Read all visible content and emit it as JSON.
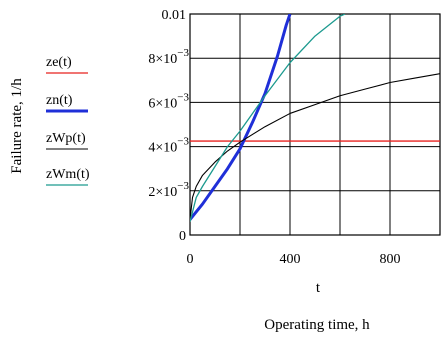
{
  "chart_data": {
    "type": "line",
    "ylabel": "Failure rate, 1/h",
    "xlabel": "t",
    "caption": "Operating time, h",
    "xlim": [
      0,
      1000
    ],
    "ylim": [
      0,
      0.01
    ],
    "x_ticks": [
      {
        "value": 0,
        "label": "0"
      },
      {
        "value": 400,
        "label": "400"
      },
      {
        "value": 800,
        "label": "800"
      }
    ],
    "y_ticks": [
      {
        "value": 0,
        "base": "0",
        "exp": ""
      },
      {
        "value": 0.002,
        "base": "2×10",
        "exp": "−3"
      },
      {
        "value": 0.004,
        "base": "4×10",
        "exp": "−3"
      },
      {
        "value": 0.006,
        "base": "6×10",
        "exp": "−3"
      },
      {
        "value": 0.008,
        "base": "8×10",
        "exp": "−3"
      },
      {
        "value": 0.01,
        "base": "0.01",
        "exp": ""
      }
    ],
    "grid": true,
    "legend_position": "left",
    "series": [
      {
        "name": "ze(t)",
        "color": "#e8201f",
        "width": 1.3,
        "points": [
          [
            0,
            0.00425
          ],
          [
            1000,
            0.00425
          ]
        ]
      },
      {
        "name": "zn(t)",
        "color": "#1f2fd8",
        "width": 3,
        "points": [
          [
            0,
            0.0007
          ],
          [
            50,
            0.0014
          ],
          [
            100,
            0.0022
          ],
          [
            150,
            0.003
          ],
          [
            200,
            0.0039
          ],
          [
            250,
            0.0051
          ],
          [
            300,
            0.0064
          ],
          [
            350,
            0.0081
          ],
          [
            385,
            0.0095
          ],
          [
            400,
            0.01
          ]
        ]
      },
      {
        "name": "zWp(t)",
        "color": "#000000",
        "width": 1.1,
        "points": [
          [
            0,
            0.0007
          ],
          [
            10,
            0.0017
          ],
          [
            25,
            0.0022
          ],
          [
            50,
            0.0027
          ],
          [
            100,
            0.0033
          ],
          [
            150,
            0.0038
          ],
          [
            200,
            0.0042
          ],
          [
            300,
            0.0049
          ],
          [
            400,
            0.0055
          ],
          [
            500,
            0.0059
          ],
          [
            600,
            0.0063
          ],
          [
            700,
            0.0066
          ],
          [
            800,
            0.0069
          ],
          [
            900,
            0.0071
          ],
          [
            1000,
            0.0073
          ]
        ]
      },
      {
        "name": "zWm(t)",
        "color": "#1c9a8f",
        "width": 1.3,
        "points": [
          [
            0,
            0.0006
          ],
          [
            25,
            0.0017
          ],
          [
            50,
            0.0022
          ],
          [
            100,
            0.0031
          ],
          [
            150,
            0.004
          ],
          [
            200,
            0.0047
          ],
          [
            250,
            0.0055
          ],
          [
            300,
            0.0063
          ],
          [
            400,
            0.0078
          ],
          [
            500,
            0.009
          ],
          [
            600,
            0.0099
          ],
          [
            620,
            0.01
          ]
        ]
      }
    ]
  }
}
